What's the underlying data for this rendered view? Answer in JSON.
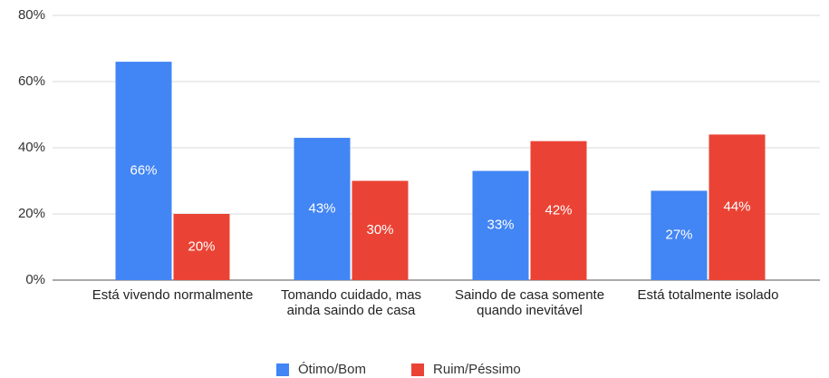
{
  "chart_data": {
    "type": "bar",
    "categories": [
      "Está vivendo normalmente",
      "Tomando cuidado, mas ainda saindo de casa",
      "Saindo de casa somente quando inevitável",
      "Está totalmente isolado"
    ],
    "series": [
      {
        "name": "Ótimo/Bom",
        "color": "#4285f4",
        "values": [
          66,
          43,
          33,
          27
        ],
        "value_labels": [
          "66%",
          "43%",
          "33%",
          "27%"
        ]
      },
      {
        "name": "Ruim/Péssimo",
        "color": "#ea4335",
        "values": [
          20,
          30,
          42,
          44
        ],
        "value_labels": [
          "20%",
          "30%",
          "42%",
          "44%"
        ]
      }
    ],
    "ylim": [
      0,
      80
    ],
    "yticks": [
      {
        "value": 0,
        "label": "0%"
      },
      {
        "value": 20,
        "label": "20%"
      },
      {
        "value": 40,
        "label": "40%"
      },
      {
        "value": 60,
        "label": "60%"
      },
      {
        "value": 80,
        "label": "80%"
      }
    ],
    "grid": true,
    "legend": "bottom"
  }
}
